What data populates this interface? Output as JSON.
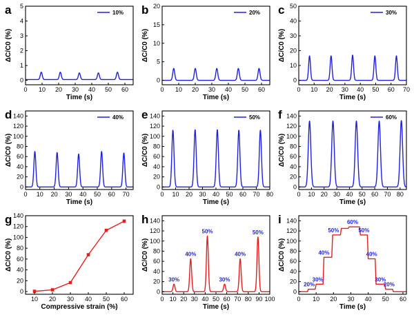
{
  "colors": {
    "blue": "#1f1fe0",
    "red": "#e81c1c"
  },
  "chart_data": [
    {
      "panel": "a",
      "type": "line",
      "legend": "10%",
      "legend_placement": "top-right",
      "xlabel": "Time (s)",
      "ylabel": "ΔC/C0 (%)",
      "xlim": [
        0,
        65
      ],
      "ylim": [
        -0.3,
        5
      ],
      "xticks": [
        0,
        10,
        20,
        30,
        40,
        50,
        60
      ],
      "yticks": [
        0,
        1,
        2,
        3,
        4,
        5
      ],
      "baseline": 0.05,
      "peak_width": 0.6,
      "peaks": [
        {
          "x": 9.5,
          "y": 0.55
        },
        {
          "x": 21,
          "y": 0.55
        },
        {
          "x": 32.5,
          "y": 0.5
        },
        {
          "x": 44,
          "y": 0.5
        },
        {
          "x": 55.5,
          "y": 0.55
        }
      ]
    },
    {
      "panel": "b",
      "type": "line",
      "legend": "20%",
      "legend_placement": "top-right",
      "xlabel": "Time (s)",
      "ylabel": "ΔC/C0 (%)",
      "xlim": [
        0,
        65
      ],
      "ylim": [
        -1.2,
        20
      ],
      "xticks": [
        0,
        10,
        20,
        30,
        40,
        50,
        60
      ],
      "yticks": [
        0,
        5,
        10,
        15,
        20
      ],
      "baseline": 0,
      "peak_width": 0.6,
      "peaks": [
        {
          "x": 7,
          "y": 3.2
        },
        {
          "x": 20,
          "y": 3.2
        },
        {
          "x": 33,
          "y": 3.2
        },
        {
          "x": 46,
          "y": 3.2
        },
        {
          "x": 58.5,
          "y": 3.2
        }
      ]
    },
    {
      "panel": "c",
      "type": "line",
      "legend": "30%",
      "legend_placement": "top-right",
      "xlabel": "Time (s)",
      "ylabel": "ΔC/C0 (%)",
      "xlim": [
        0,
        70
      ],
      "ylim": [
        -3,
        50
      ],
      "xticks": [
        0,
        10,
        20,
        30,
        40,
        50,
        60,
        70
      ],
      "yticks": [
        0,
        10,
        20,
        30,
        40,
        50
      ],
      "baseline": 0,
      "peak_width": 0.6,
      "peaks": [
        {
          "x": 7,
          "y": 16.5
        },
        {
          "x": 21,
          "y": 16.5
        },
        {
          "x": 35,
          "y": 17
        },
        {
          "x": 49.5,
          "y": 16.5
        },
        {
          "x": 63.5,
          "y": 16.5
        }
      ]
    },
    {
      "panel": "d",
      "type": "line",
      "legend": "40%",
      "legend_placement": "top-right",
      "xlabel": "Time (s)",
      "ylabel": "ΔC/C0 (%)",
      "xlim": [
        0,
        75
      ],
      "ylim": [
        -5,
        150
      ],
      "xticks": [
        0,
        10,
        20,
        30,
        40,
        50,
        60,
        70
      ],
      "yticks": [
        0,
        20,
        40,
        60,
        80,
        100,
        120,
        140
      ],
      "baseline": 0,
      "peak_width": 0.7,
      "peaks": [
        {
          "x": 6.5,
          "y": 70
        },
        {
          "x": 22,
          "y": 68
        },
        {
          "x": 37,
          "y": 65
        },
        {
          "x": 53,
          "y": 70
        },
        {
          "x": 68.5,
          "y": 67
        }
      ]
    },
    {
      "panel": "e",
      "type": "line",
      "legend": "50%",
      "legend_placement": "top-right",
      "xlabel": "Time (s)",
      "ylabel": "ΔC/C0 (%)",
      "xlim": [
        0,
        80
      ],
      "ylim": [
        -5,
        150
      ],
      "xticks": [
        0,
        10,
        20,
        30,
        40,
        50,
        60,
        70,
        80
      ],
      "yticks": [
        0,
        20,
        40,
        60,
        80,
        100,
        120,
        140
      ],
      "baseline": 0,
      "peak_width": 0.8,
      "peaks": [
        {
          "x": 8,
          "y": 112
        },
        {
          "x": 24.5,
          "y": 113
        },
        {
          "x": 41,
          "y": 113
        },
        {
          "x": 57,
          "y": 112
        },
        {
          "x": 73,
          "y": 112
        }
      ]
    },
    {
      "panel": "f",
      "type": "line",
      "legend": "60%",
      "legend_placement": "top-right",
      "xlabel": "Time (s)",
      "ylabel": "ΔC/C0 (%)",
      "xlim": [
        0,
        85
      ],
      "ylim": [
        -5,
        150
      ],
      "xticks": [
        0,
        10,
        20,
        30,
        40,
        50,
        60,
        70,
        80
      ],
      "yticks": [
        0,
        20,
        40,
        60,
        80,
        100,
        120,
        140
      ],
      "baseline": 0,
      "peak_width": 1.0,
      "peaks": [
        {
          "x": 8.5,
          "y": 130
        },
        {
          "x": 27,
          "y": 130
        },
        {
          "x": 45.5,
          "y": 130
        },
        {
          "x": 63.5,
          "y": 130
        },
        {
          "x": 81,
          "y": 131
        }
      ]
    },
    {
      "panel": "g",
      "type": "line",
      "marker": "square",
      "xlabel": "Compressive strain (%)",
      "ylabel": "ΔC/C0 (%)",
      "xlim": [
        5,
        65
      ],
      "ylim": [
        -5,
        140
      ],
      "xticks": [
        10,
        20,
        30,
        40,
        50,
        60
      ],
      "yticks": [
        0,
        20,
        40,
        60,
        80,
        100,
        120,
        140
      ],
      "x": [
        10,
        20,
        30,
        40,
        50,
        60
      ],
      "y": [
        0.5,
        3.2,
        16.5,
        68,
        113,
        130
      ]
    },
    {
      "panel": "h",
      "type": "line",
      "xlabel": "Time (s)",
      "ylabel": "ΔC/C0 (%)",
      "xlim": [
        0,
        100
      ],
      "ylim": [
        -5,
        150
      ],
      "xticks": [
        0,
        10,
        20,
        30,
        40,
        50,
        60,
        70,
        80,
        90,
        100
      ],
      "yticks": [
        0,
        20,
        40,
        60,
        80,
        100,
        120,
        140
      ],
      "baseline": 0,
      "peak_width": 0.9,
      "peaks": [
        {
          "x": 11,
          "y": 15
        },
        {
          "x": 26.5,
          "y": 65
        },
        {
          "x": 42,
          "y": 110
        },
        {
          "x": 58,
          "y": 15
        },
        {
          "x": 72.5,
          "y": 65
        },
        {
          "x": 89,
          "y": 108
        }
      ],
      "annotations": [
        {
          "text": "30%",
          "x": 11,
          "y": 15
        },
        {
          "text": "40%",
          "x": 26.5,
          "y": 65
        },
        {
          "text": "50%",
          "x": 42,
          "y": 110
        },
        {
          "text": "30%",
          "x": 58,
          "y": 15
        },
        {
          "text": "40%",
          "x": 72.5,
          "y": 65
        },
        {
          "text": "50%",
          "x": 89,
          "y": 108
        }
      ]
    },
    {
      "panel": "i",
      "type": "line",
      "xlabel": "Time (s)",
      "ylabel": "ΔC/C0 (%)",
      "xlim": [
        0,
        62
      ],
      "ylim": [
        -5,
        150
      ],
      "xticks": [
        0,
        10,
        20,
        30,
        40,
        50,
        60
      ],
      "yticks": [
        0,
        20,
        40,
        60,
        80,
        100,
        120,
        140
      ],
      "steps": [
        {
          "x0": 0,
          "x1": 5,
          "y": 0
        },
        {
          "x0": 5.5,
          "x1": 9.5,
          "y": 5
        },
        {
          "x0": 10,
          "x1": 14,
          "y": 15
        },
        {
          "x0": 14.5,
          "x1": 19,
          "y": 68
        },
        {
          "x0": 19.5,
          "x1": 24,
          "y": 112
        },
        {
          "x0": 24.5,
          "x1": 28.5,
          "y": 125
        },
        {
          "x0": 29,
          "x1": 35,
          "y": 128
        },
        {
          "x0": 35.5,
          "x1": 39.5,
          "y": 112
        },
        {
          "x0": 40,
          "x1": 44,
          "y": 65
        },
        {
          "x0": 44.5,
          "x1": 49.5,
          "y": 15
        },
        {
          "x0": 50,
          "x1": 54,
          "y": 5
        },
        {
          "x0": 54.5,
          "x1": 62,
          "y": 0
        }
      ],
      "annotations": [
        {
          "text": "20%",
          "x": 6,
          "y": 5
        },
        {
          "text": "30%",
          "x": 11,
          "y": 15
        },
        {
          "text": "40%",
          "x": 14.5,
          "y": 68
        },
        {
          "text": "50%",
          "x": 20,
          "y": 112
        },
        {
          "text": "60%",
          "x": 31,
          "y": 128
        },
        {
          "text": "50%",
          "x": 37.5,
          "y": 112
        },
        {
          "text": "40%",
          "x": 42,
          "y": 65
        },
        {
          "text": "30%",
          "x": 47,
          "y": 15
        },
        {
          "text": "20%",
          "x": 52,
          "y": 5
        }
      ]
    }
  ]
}
